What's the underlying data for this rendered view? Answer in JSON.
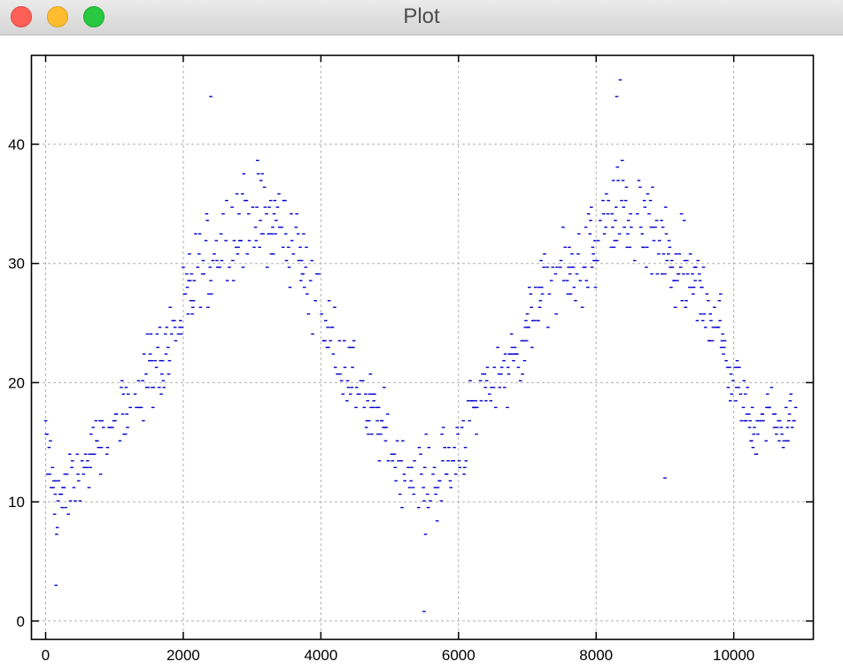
{
  "window": {
    "title": "Plot"
  },
  "chart_data": {
    "type": "scatter",
    "title": "",
    "xlabel": "",
    "ylabel": "",
    "xlim": [
      -200,
      11150
    ],
    "ylim": [
      -1.5,
      47.5
    ],
    "x_ticks": [
      0,
      2000,
      4000,
      6000,
      8000,
      10000
    ],
    "y_ticks": [
      0,
      10,
      20,
      30,
      40
    ],
    "grid": true,
    "grid_style": "dashed",
    "legend": "none",
    "series": [
      {
        "color": "#0000cc",
        "marker": "short horizontal dash",
        "y_quantization": 0.56,
        "x_step": 10,
        "summary_points": {
          "x": [
            0,
            100,
            200,
            400,
            600,
            800,
            1000,
            1200,
            1500,
            1800,
            2000,
            2200,
            2500,
            2800,
            3000,
            3300,
            3600,
            3800,
            4000,
            4200,
            4500,
            4800,
            5000,
            5200,
            5500,
            5800,
            6000,
            6200,
            6500,
            6800,
            7000,
            7200,
            7500,
            7800,
            8000,
            8300,
            8600,
            9000,
            9300,
            9600,
            9800,
            10000,
            10300,
            10600,
            10900
          ],
          "y": [
            15,
            11.5,
            10,
            11.5,
            13,
            15,
            16,
            18,
            21,
            23.5,
            25.5,
            29,
            31.5,
            33,
            34.5,
            33,
            32,
            29,
            25,
            23,
            20,
            17,
            15,
            13,
            11,
            13,
            14.5,
            17,
            20,
            22,
            25,
            27,
            28.5,
            30,
            31.5,
            34,
            33,
            31,
            29,
            27,
            24,
            20,
            17,
            17,
            17
          ],
          "spread": [
            6,
            5,
            4,
            4,
            4,
            4,
            4,
            4.5,
            5,
            5,
            5,
            6,
            6.5,
            6.5,
            6.5,
            6.5,
            6,
            6,
            5.5,
            5,
            5,
            5,
            5,
            5,
            5.5,
            6,
            5.5,
            5,
            5,
            5,
            5,
            5,
            5,
            5,
            5.5,
            6.5,
            6.5,
            6,
            5.5,
            5,
            5,
            4.5,
            4,
            4,
            4
          ]
        },
        "extremes": [
          {
            "x": 5500,
            "y": 0.8
          },
          {
            "x": 8350,
            "y": 45.4
          },
          {
            "x": 2400,
            "y": 44
          },
          {
            "x": 8300,
            "y": 44
          },
          {
            "x": 150,
            "y": 3
          },
          {
            "x": 9000,
            "y": 12
          }
        ]
      }
    ]
  }
}
